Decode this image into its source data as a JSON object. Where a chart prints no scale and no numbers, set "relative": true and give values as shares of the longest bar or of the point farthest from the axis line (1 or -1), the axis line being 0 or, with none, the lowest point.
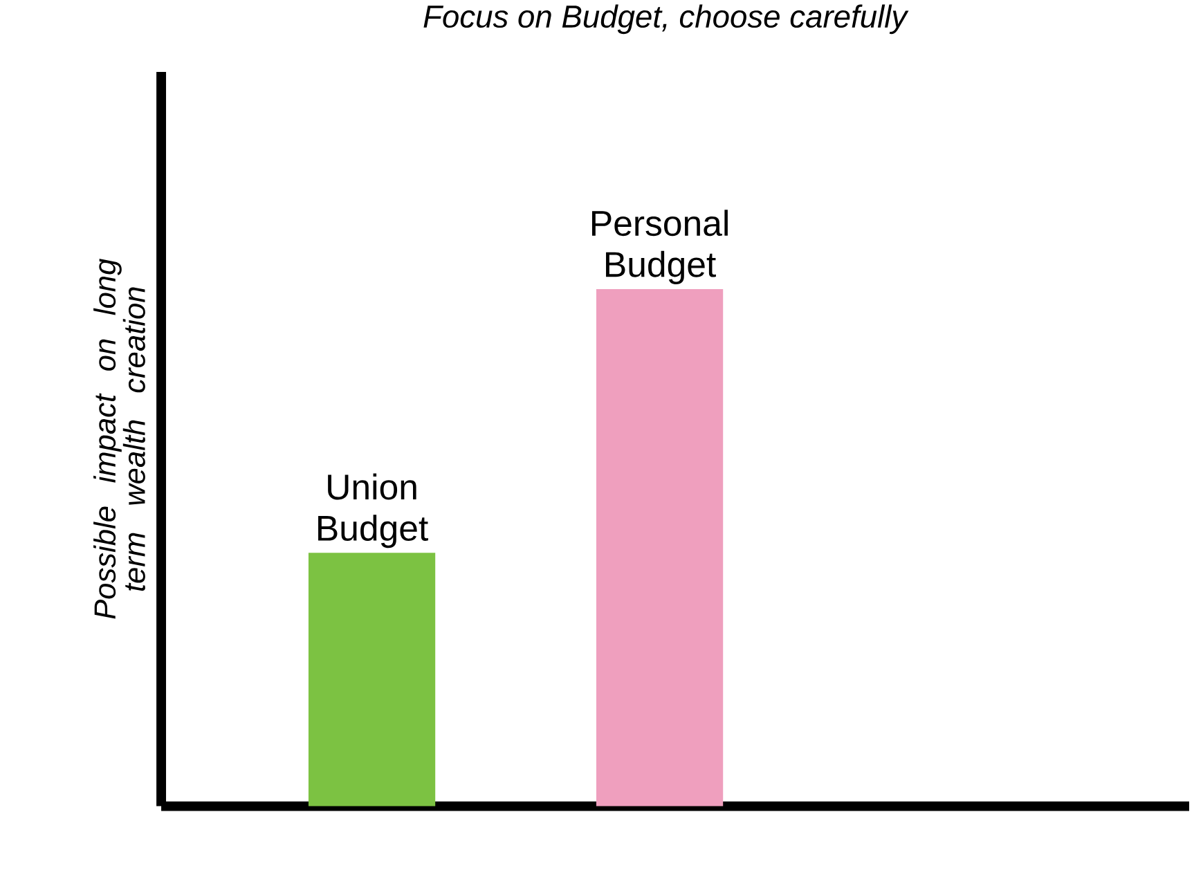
{
  "chart_data": {
    "type": "bar",
    "title": "Focus on Budget, choose carefully",
    "ylabel": "Possible impact on long term wealth creation",
    "categories": [
      "Union Budget",
      "Personal Budget"
    ],
    "values": [
      0.49,
      1
    ],
    "colors": [
      "#7cc242",
      "#ef9fbe"
    ],
    "relative": true
  }
}
